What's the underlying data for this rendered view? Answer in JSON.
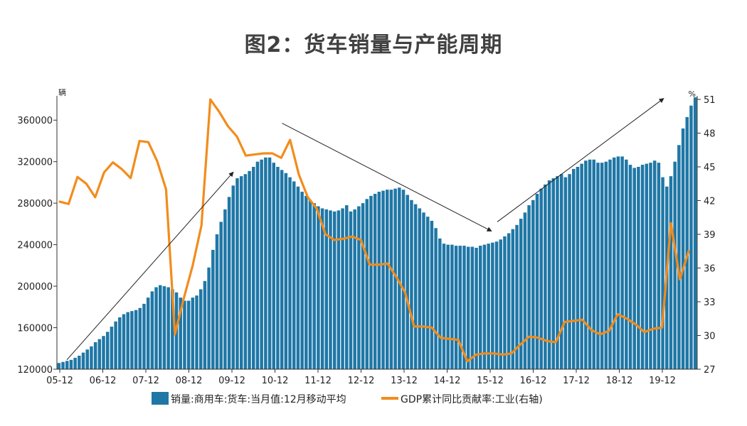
{
  "chart_data": {
    "type": "bar+line",
    "title": "图2：货车销量与产能周期",
    "left_unit": "辆",
    "right_unit": "%",
    "colors": {
      "bar": "#1f77a6",
      "line": "#f28c1c",
      "arrow": "#222222"
    },
    "x_labels": [
      "05-12",
      "06-12",
      "07-12",
      "08-12",
      "09-12",
      "10-12",
      "11-12",
      "12-12",
      "13-12",
      "14-12",
      "15-12",
      "16-12",
      "17-12",
      "18-12",
      "19-12"
    ],
    "y_left": {
      "min": 120000,
      "max": 380000,
      "ticks": [
        120000,
        160000,
        200000,
        240000,
        280000,
        320000,
        360000
      ]
    },
    "y_right": {
      "min": 27,
      "max": 51,
      "ticks": [
        27,
        30,
        33,
        36,
        39,
        42,
        45,
        48,
        51
      ]
    },
    "series": [
      {
        "name": "销量:商用车:货车:当月值:12月移动平均",
        "kind": "bar",
        "axis": "left",
        "values": [
          126000,
          127000,
          128000,
          129000,
          131000,
          133000,
          136000,
          139000,
          142000,
          146000,
          149000,
          152000,
          156000,
          161000,
          166000,
          170000,
          173000,
          175000,
          176000,
          177000,
          179000,
          183000,
          189000,
          195000,
          199000,
          201000,
          200000,
          199000,
          197000,
          194000,
          189000,
          186000,
          186000,
          189000,
          191000,
          197000,
          205000,
          218000,
          235000,
          250000,
          262000,
          274000,
          286000,
          297000,
          304000,
          306000,
          308000,
          311000,
          315000,
          320000,
          322000,
          324000,
          324000,
          319000,
          315000,
          312000,
          309000,
          305000,
          301000,
          296000,
          291000,
          287000,
          283000,
          280000,
          277000,
          275000,
          274000,
          273000,
          272000,
          273000,
          275000,
          278000,
          272000,
          274000,
          277000,
          280000,
          284000,
          287000,
          289000,
          291000,
          292000,
          293000,
          293000,
          294000,
          295000,
          293000,
          288000,
          283000,
          279000,
          275000,
          271000,
          267000,
          263000,
          256000,
          246000,
          241000,
          240000,
          240000,
          239000,
          239000,
          239000,
          238000,
          238000,
          237000,
          239000,
          240000,
          241000,
          242000,
          243000,
          245000,
          248000,
          251000,
          255000,
          259000,
          265000,
          271000,
          278000,
          283000,
          289000,
          294000,
          298000,
          302000,
          304000,
          306000,
          308000,
          305000,
          308000,
          313000,
          315000,
          318000,
          321000,
          322000,
          322000,
          319000,
          319000,
          320000,
          322000,
          324000,
          325000,
          325000,
          322000,
          317000,
          314000,
          315000,
          317000,
          318000,
          319000,
          321000,
          319000,
          305000,
          296000,
          306000,
          320000,
          336000,
          352000,
          363000,
          374000,
          382000
        ]
      },
      {
        "name": "GDP累计同比贡献率:工业(右轴)",
        "kind": "line",
        "axis": "right",
        "values": [
          41.9,
          41.7,
          44.1,
          43.5,
          42.3,
          44.5,
          45.4,
          44.8,
          44.0,
          47.3,
          47.2,
          45.5,
          43.0,
          30.1,
          33.3,
          36.2,
          39.8,
          51.0,
          49.9,
          48.6,
          47.7,
          46.0,
          46.1,
          46.2,
          46.2,
          45.8,
          47.4,
          44.3,
          42.3,
          41.3,
          39.0,
          38.5,
          38.6,
          38.8,
          38.5,
          36.3,
          36.3,
          36.4,
          35.2,
          33.8,
          30.8,
          30.8,
          30.7,
          29.8,
          29.7,
          29.6,
          27.7,
          28.3,
          28.4,
          28.4,
          28.3,
          28.4,
          29.2,
          29.9,
          29.8,
          29.5,
          29.4,
          31.2,
          31.3,
          31.4,
          30.5,
          30.1,
          30.4,
          31.9,
          31.5,
          31.0,
          30.3,
          30.6,
          30.7,
          40.0,
          35.0,
          37.5
        ]
      }
    ],
    "annotations": [
      {
        "kind": "arrow",
        "from": {
          "x": "05-12",
          "y": 129000
        },
        "to": {
          "x": "09-12",
          "y": 310000
        }
      },
      {
        "kind": "arrow",
        "from": {
          "x": "10-12",
          "y": 357000
        },
        "to": {
          "x": "15-12",
          "y": 253000
        }
      },
      {
        "kind": "arrow",
        "from": {
          "x": "15-12",
          "y": 262000
        },
        "to": {
          "x": "19-12",
          "y": 381000
        }
      }
    ]
  }
}
